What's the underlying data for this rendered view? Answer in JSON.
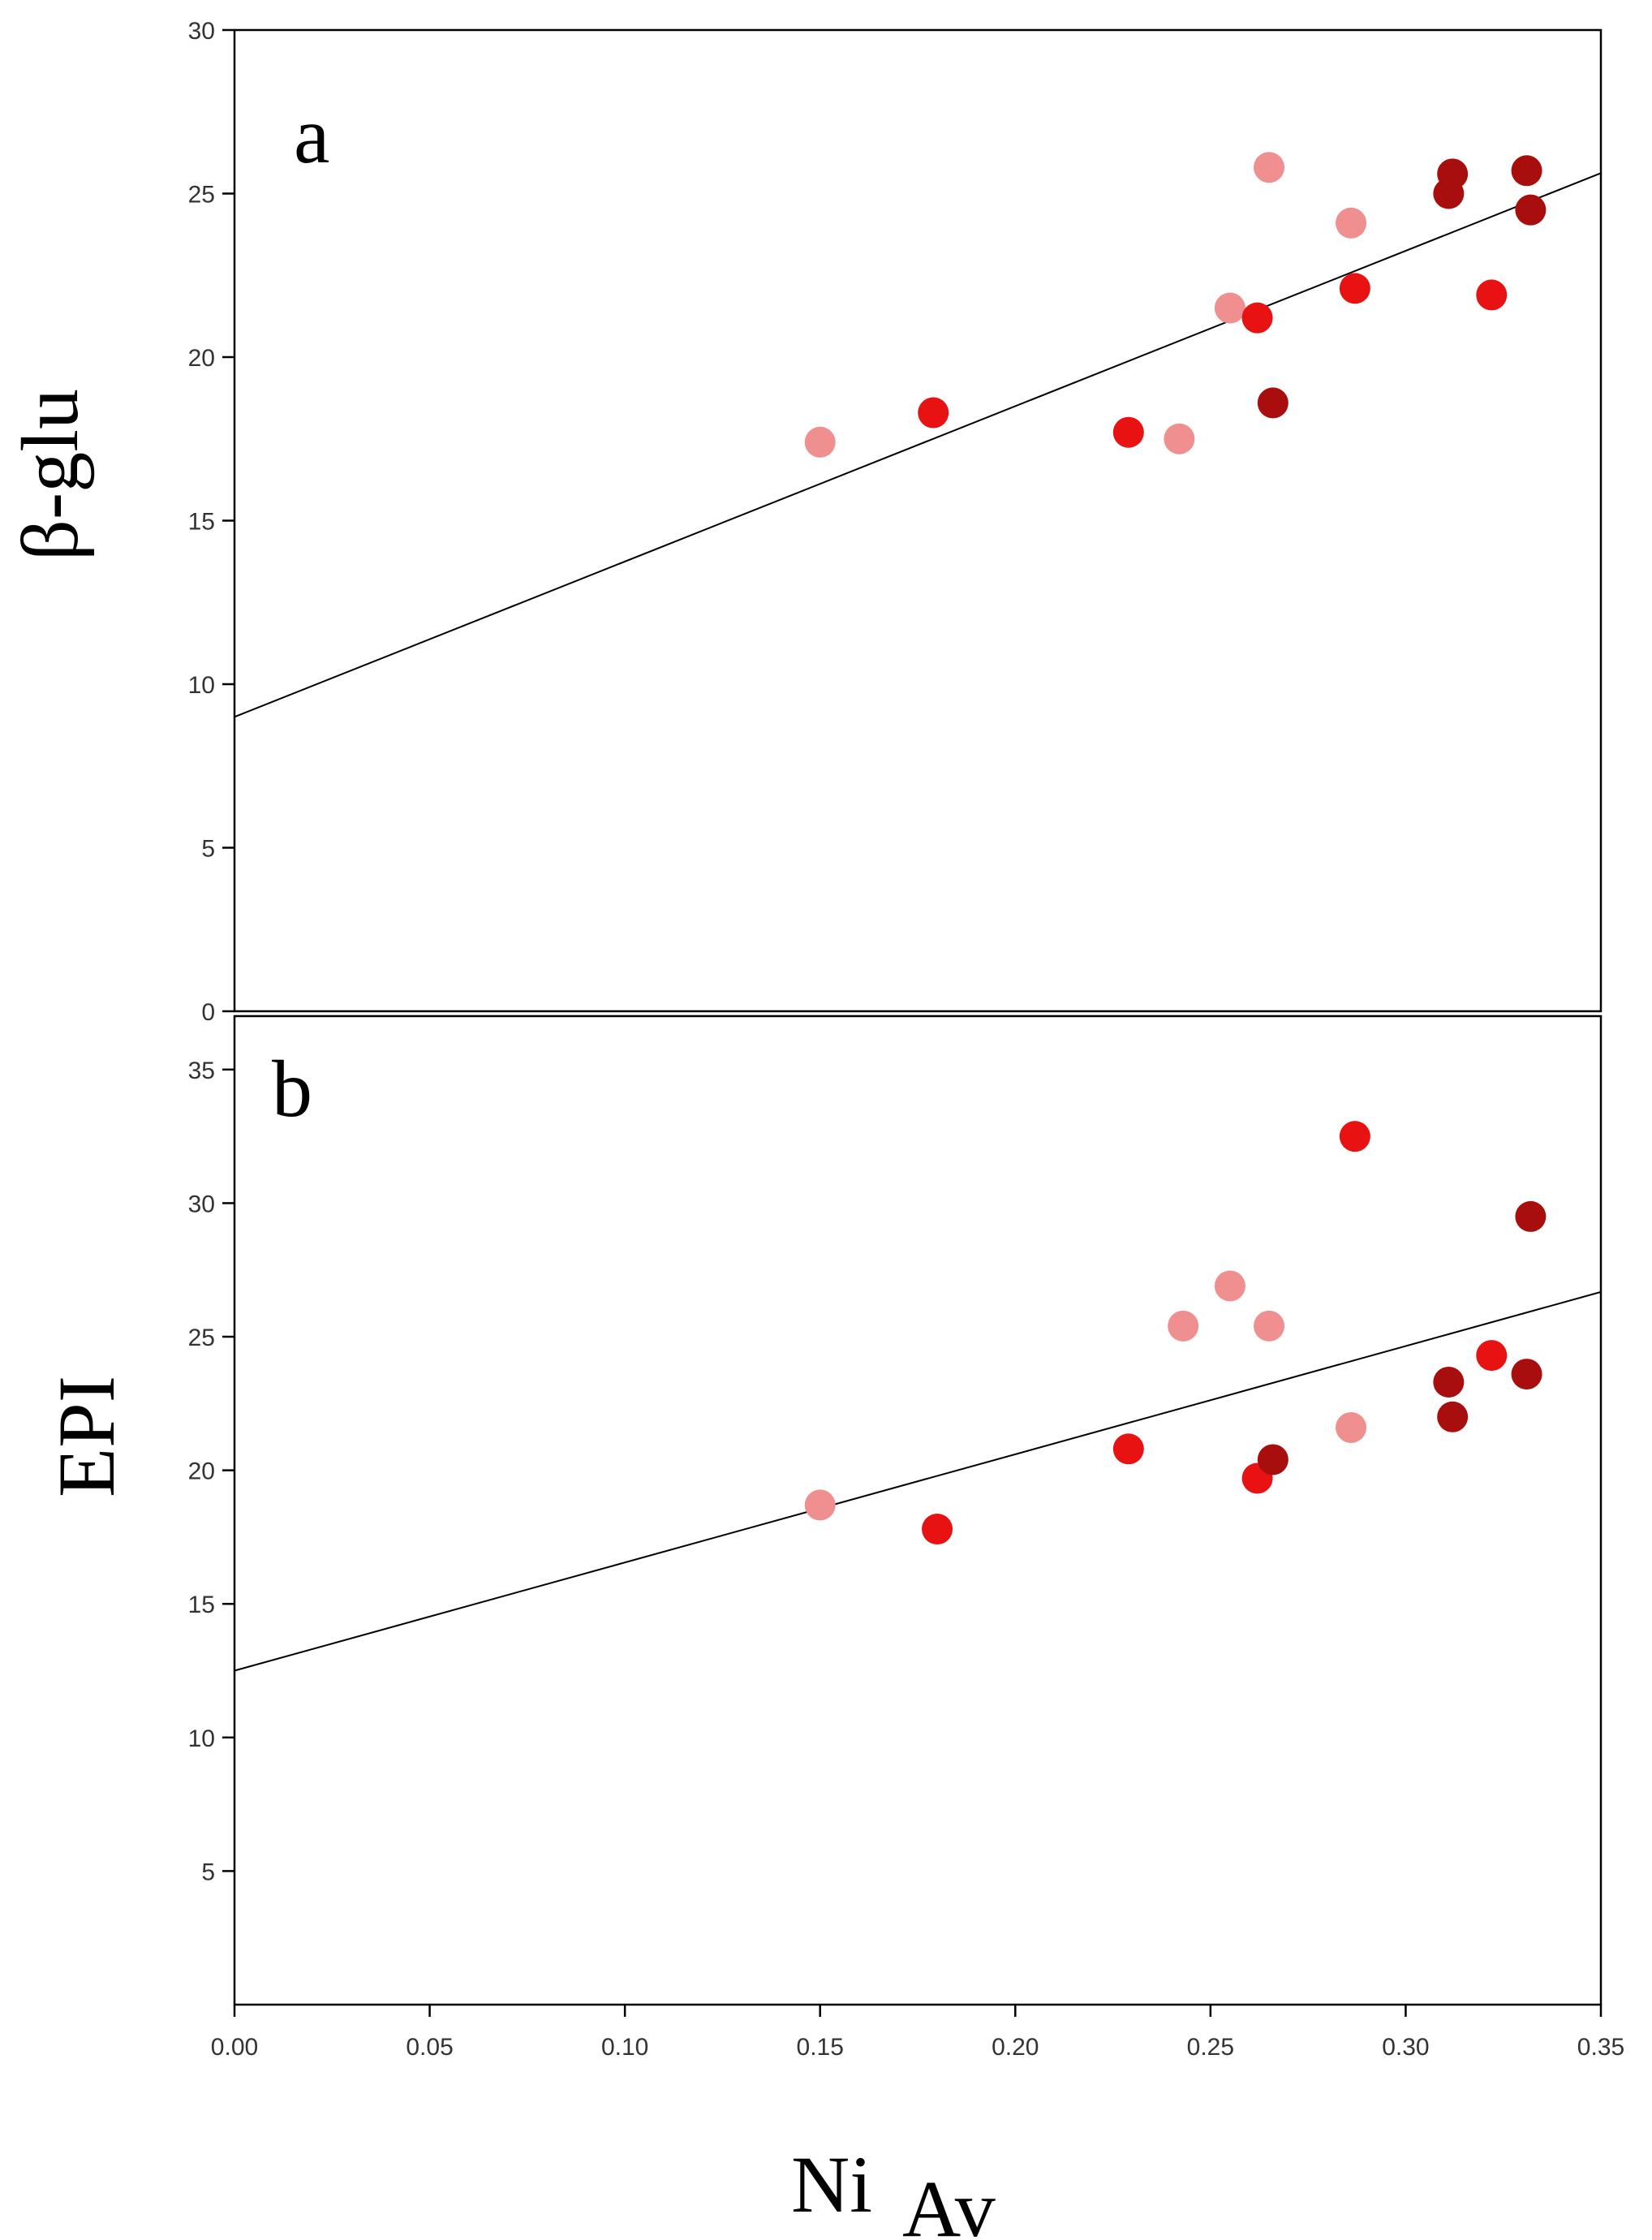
{
  "chart_data": [
    {
      "type": "scatter",
      "panel_label": "a",
      "ylabel": "β-glu",
      "xlim": [
        0,
        0.35
      ],
      "ylim": [
        0,
        30
      ],
      "y_ticks": [
        0,
        5,
        10,
        15,
        20,
        25,
        30
      ],
      "grid": false,
      "legend": "none",
      "fit_line": {
        "intercept": 9.0,
        "slope": 47.5
      },
      "points": [
        {
          "x": 0.15,
          "y": 17.4,
          "color": "#f08f8f"
        },
        {
          "x": 0.179,
          "y": 18.3,
          "color": "#e81212"
        },
        {
          "x": 0.229,
          "y": 17.7,
          "color": "#e81212"
        },
        {
          "x": 0.242,
          "y": 17.5,
          "color": "#f08f8f"
        },
        {
          "x": 0.255,
          "y": 21.5,
          "color": "#f08f8f"
        },
        {
          "x": 0.262,
          "y": 21.2,
          "color": "#e81212"
        },
        {
          "x": 0.265,
          "y": 25.8,
          "color": "#f08f8f"
        },
        {
          "x": 0.266,
          "y": 18.6,
          "color": "#a80e0e"
        },
        {
          "x": 0.286,
          "y": 24.1,
          "color": "#f08f8f"
        },
        {
          "x": 0.287,
          "y": 22.1,
          "color": "#e81212"
        },
        {
          "x": 0.311,
          "y": 25.0,
          "color": "#a80e0e"
        },
        {
          "x": 0.312,
          "y": 25.6,
          "color": "#a80e0e"
        },
        {
          "x": 0.322,
          "y": 21.9,
          "color": "#e81212"
        },
        {
          "x": 0.331,
          "y": 25.7,
          "color": "#a80e0e"
        },
        {
          "x": 0.332,
          "y": 24.5,
          "color": "#a80e0e"
        }
      ]
    },
    {
      "type": "scatter",
      "panel_label": "b",
      "ylabel": "EPI",
      "xlabel": "Ni",
      "xlabel_subscript": "Av",
      "xlim": [
        0,
        0.35
      ],
      "ylim": [
        0,
        37
      ],
      "x_ticks": [
        "0.00",
        "0.05",
        "0.10",
        "0.15",
        "0.20",
        "0.25",
        "0.30",
        "0.35"
      ],
      "y_ticks": [
        5,
        10,
        15,
        20,
        25,
        30,
        35
      ],
      "grid": false,
      "legend": "none",
      "fit_line": {
        "intercept": 12.5,
        "slope": 40.5
      },
      "points": [
        {
          "x": 0.15,
          "y": 18.7,
          "color": "#f08f8f"
        },
        {
          "x": 0.18,
          "y": 17.8,
          "color": "#e81212"
        },
        {
          "x": 0.229,
          "y": 20.8,
          "color": "#e81212"
        },
        {
          "x": 0.243,
          "y": 25.4,
          "color": "#f08f8f"
        },
        {
          "x": 0.255,
          "y": 26.9,
          "color": "#f08f8f"
        },
        {
          "x": 0.262,
          "y": 19.7,
          "color": "#e81212"
        },
        {
          "x": 0.265,
          "y": 25.4,
          "color": "#f08f8f"
        },
        {
          "x": 0.266,
          "y": 20.4,
          "color": "#a80e0e"
        },
        {
          "x": 0.286,
          "y": 21.6,
          "color": "#f08f8f"
        },
        {
          "x": 0.287,
          "y": 32.5,
          "color": "#e81212"
        },
        {
          "x": 0.311,
          "y": 23.3,
          "color": "#a80e0e"
        },
        {
          "x": 0.312,
          "y": 22.0,
          "color": "#a80e0e"
        },
        {
          "x": 0.322,
          "y": 24.3,
          "color": "#e81212"
        },
        {
          "x": 0.331,
          "y": 23.6,
          "color": "#a80e0e"
        },
        {
          "x": 0.332,
          "y": 29.5,
          "color": "#a80e0e"
        }
      ]
    }
  ]
}
